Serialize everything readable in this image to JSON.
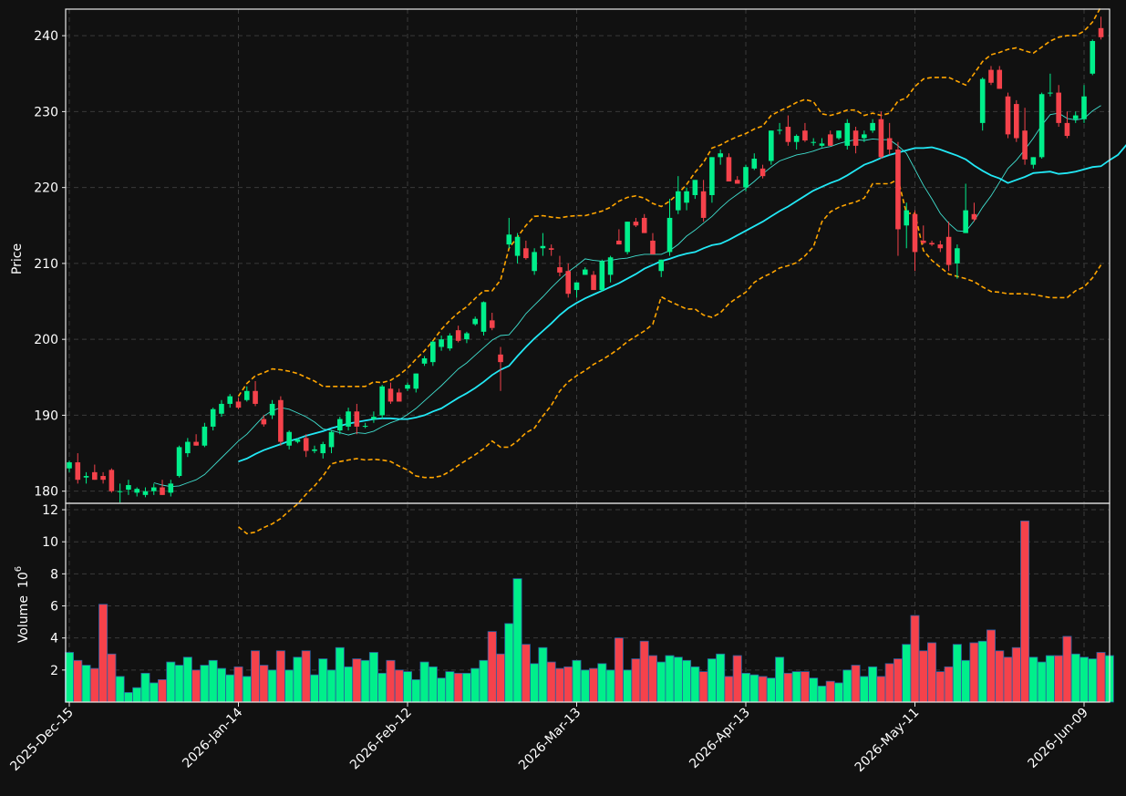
{
  "chart_data": {
    "type": "candlestick",
    "style": {
      "background": "#111111",
      "up_color": "#00ef8b",
      "down_color": "#f5424b",
      "grid_color": "#3a3a3a",
      "ma_short_color": "#40e0d0",
      "ma_long_color": "#22e8f5",
      "band_color": "#ffa500"
    },
    "price_panel": {
      "ylabel": "Price",
      "ylim": [
        178.4,
        243.5
      ],
      "yticks": [
        180,
        190,
        200,
        210,
        220,
        230,
        240
      ]
    },
    "volume_panel": {
      "ylabel": "Volume",
      "ylabel_unit": "10",
      "ylabel_exp": "6",
      "ylim": [
        0,
        12.4
      ],
      "yticks": [
        2,
        4,
        6,
        8,
        10,
        12
      ]
    },
    "x_axis": {
      "ticks": [
        {
          "index": 0,
          "label": "2025-Dec-15"
        },
        {
          "index": 20,
          "label": "2026-Jan-14"
        },
        {
          "index": 40,
          "label": "2026-Feb-12"
        },
        {
          "index": 60,
          "label": "2026-Mar-13"
        },
        {
          "index": 80,
          "label": "2026-Apr-13"
        },
        {
          "index": 100,
          "label": "2026-May-11"
        },
        {
          "index": 120,
          "label": "2026-Jun-09"
        }
      ]
    },
    "candles": [
      [
        183.0,
        184.0,
        182.5,
        183.8
      ],
      [
        183.8,
        185.0,
        181.0,
        181.5
      ],
      [
        181.8,
        182.5,
        181.0,
        182.0
      ],
      [
        182.5,
        183.5,
        181.5,
        181.5
      ],
      [
        182.0,
        182.5,
        181.0,
        181.5
      ],
      [
        182.8,
        183.0,
        179.8,
        180.0
      ],
      [
        180.0,
        181.0,
        178.5,
        180.0
      ],
      [
        180.2,
        181.5,
        179.5,
        180.8
      ],
      [
        179.8,
        180.5,
        179.3,
        180.3
      ],
      [
        179.5,
        180.5,
        179.2,
        180.0
      ],
      [
        180.0,
        181.0,
        179.5,
        180.5
      ],
      [
        180.5,
        181.5,
        179.5,
        179.5
      ],
      [
        179.8,
        181.5,
        179.3,
        181.0
      ],
      [
        182.0,
        186.0,
        181.8,
        185.8
      ],
      [
        185.0,
        187.0,
        184.5,
        186.5
      ],
      [
        186.5,
        187.5,
        186.0,
        186.0
      ],
      [
        186.0,
        189.0,
        185.8,
        188.5
      ],
      [
        188.5,
        191.0,
        188.0,
        190.8
      ],
      [
        190.2,
        192.0,
        189.8,
        191.5
      ],
      [
        191.5,
        192.8,
        191.0,
        192.5
      ],
      [
        191.8,
        192.3,
        190.8,
        191.0
      ],
      [
        192.0,
        193.8,
        191.8,
        193.2
      ],
      [
        193.2,
        194.5,
        191.2,
        191.5
      ],
      [
        189.5,
        190.0,
        188.5,
        188.8
      ],
      [
        190.0,
        192.0,
        189.5,
        191.5
      ],
      [
        192.0,
        192.5,
        186.0,
        186.5
      ],
      [
        186.0,
        188.0,
        185.5,
        187.8
      ],
      [
        186.5,
        187.0,
        186.3,
        186.8
      ],
      [
        187.0,
        187.5,
        184.5,
        185.3
      ],
      [
        185.3,
        186.0,
        185.0,
        185.5
      ],
      [
        185.0,
        186.5,
        184.3,
        186.2
      ],
      [
        185.8,
        188.0,
        185.0,
        187.8
      ],
      [
        188.0,
        189.8,
        187.5,
        189.5
      ],
      [
        188.5,
        191.0,
        188.0,
        190.5
      ],
      [
        190.5,
        191.5,
        187.5,
        188.5
      ],
      [
        188.5,
        189.0,
        188.3,
        188.6
      ],
      [
        189.5,
        190.5,
        189.0,
        189.8
      ],
      [
        190.0,
        194.0,
        189.5,
        193.8
      ],
      [
        193.5,
        194.3,
        191.5,
        191.8
      ],
      [
        193.0,
        193.5,
        191.8,
        191.8
      ],
      [
        193.5,
        194.3,
        193.2,
        194.0
      ],
      [
        193.5,
        195.5,
        193.0,
        195.5
      ],
      [
        196.8,
        197.8,
        196.5,
        197.5
      ],
      [
        197.0,
        199.8,
        196.5,
        199.7
      ],
      [
        199.0,
        200.5,
        198.5,
        200.0
      ],
      [
        198.8,
        200.8,
        198.5,
        200.5
      ],
      [
        201.2,
        201.8,
        199.6,
        199.8
      ],
      [
        200.0,
        201.0,
        199.5,
        200.8
      ],
      [
        202.0,
        203.0,
        201.8,
        202.7
      ],
      [
        201.0,
        205.0,
        200.5,
        204.9
      ],
      [
        202.5,
        203.5,
        201.2,
        201.5
      ],
      [
        198.0,
        199.0,
        193.2,
        197.0
      ],
      [
        212.5,
        216.0,
        212.0,
        213.8
      ],
      [
        211.0,
        214.0,
        210.0,
        213.5
      ],
      [
        212.0,
        213.0,
        210.5,
        210.7
      ],
      [
        209.0,
        212.0,
        208.5,
        211.5
      ],
      [
        212.0,
        214.0,
        211.0,
        212.3
      ],
      [
        212.0,
        212.5,
        211.0,
        211.8
      ],
      [
        209.5,
        211.0,
        208.3,
        208.8
      ],
      [
        209.0,
        210.0,
        205.5,
        206.0
      ],
      [
        206.5,
        207.5,
        205.5,
        207.5
      ],
      [
        208.5,
        209.5,
        208.5,
        209.2
      ],
      [
        208.5,
        209.0,
        206.5,
        206.5
      ],
      [
        206.5,
        210.5,
        206.3,
        210.3
      ],
      [
        208.5,
        211.0,
        207.5,
        210.8
      ],
      [
        213.0,
        214.5,
        212.5,
        212.5
      ],
      [
        211.5,
        215.5,
        211.2,
        215.5
      ],
      [
        215.5,
        216.0,
        214.8,
        215.0
      ],
      [
        216.0,
        216.5,
        214.0,
        214.0
      ],
      [
        213.0,
        214.0,
        211.2,
        211.2
      ],
      [
        209.0,
        210.5,
        208.2,
        210.5
      ],
      [
        211.5,
        218.5,
        211.0,
        216.0
      ],
      [
        217.0,
        221.5,
        216.5,
        219.5
      ],
      [
        218.0,
        220.0,
        217.0,
        219.5
      ],
      [
        219.0,
        221.0,
        218.5,
        221.0
      ],
      [
        219.5,
        221.0,
        215.5,
        216.0
      ],
      [
        219.0,
        224.0,
        218.0,
        224.0
      ],
      [
        224.0,
        225.0,
        223.0,
        224.5
      ],
      [
        224.0,
        224.5,
        221.0,
        220.8
      ],
      [
        221.0,
        221.5,
        220.5,
        220.5
      ],
      [
        220.0,
        223.0,
        219.5,
        222.7
      ],
      [
        222.5,
        224.5,
        222.3,
        223.8
      ],
      [
        222.5,
        223.0,
        221.2,
        221.5
      ],
      [
        223.5,
        227.5,
        223.0,
        227.5
      ],
      [
        227.5,
        228.5,
        227.0,
        227.6
      ],
      [
        228.0,
        229.5,
        225.5,
        226.0
      ],
      [
        226.0,
        227.0,
        225.0,
        226.8
      ],
      [
        227.5,
        228.5,
        226.0,
        226.2
      ],
      [
        226.0,
        226.5,
        225.5,
        226.0
      ],
      [
        225.5,
        226.5,
        225.3,
        225.8
      ],
      [
        227.0,
        227.5,
        225.5,
        225.5
      ],
      [
        226.5,
        227.5,
        226.3,
        227.5
      ],
      [
        225.5,
        229.0,
        225.0,
        228.5
      ],
      [
        227.5,
        228.0,
        224.5,
        225.5
      ],
      [
        226.5,
        227.5,
        226.0,
        227.0
      ],
      [
        227.5,
        229.0,
        227.2,
        228.5
      ],
      [
        229.0,
        230.0,
        223.8,
        224.0
      ],
      [
        226.5,
        228.5,
        224.3,
        225.0
      ],
      [
        225.0,
        226.0,
        211.0,
        214.5
      ],
      [
        215.0,
        218.0,
        212.0,
        217.0
      ],
      [
        216.5,
        217.0,
        209.0,
        211.5
      ],
      [
        213.0,
        215.0,
        212.5,
        212.7
      ],
      [
        212.7,
        213.0,
        212.3,
        212.5
      ],
      [
        212.5,
        213.0,
        211.5,
        212.0
      ],
      [
        213.5,
        215.5,
        209.0,
        209.8
      ],
      [
        210.0,
        212.5,
        208.0,
        212.0
      ],
      [
        214.0,
        220.5,
        214.0,
        217.0
      ],
      [
        216.5,
        218.0,
        215.5,
        215.8
      ],
      [
        228.5,
        234.5,
        227.5,
        234.3
      ],
      [
        235.5,
        236.0,
        233.5,
        233.8
      ],
      [
        235.5,
        236.0,
        233.0,
        233.0
      ],
      [
        232.0,
        232.5,
        226.5,
        227.0
      ],
      [
        231.0,
        231.5,
        226.0,
        226.5
      ],
      [
        227.5,
        230.5,
        223.0,
        223.7
      ],
      [
        223.0,
        224.0,
        222.5,
        224.0
      ],
      [
        224.0,
        232.5,
        223.8,
        232.3
      ],
      [
        232.5,
        235.0,
        232.0,
        232.5
      ],
      [
        232.5,
        233.5,
        228.0,
        228.5
      ],
      [
        228.5,
        230.0,
        226.5,
        226.8
      ],
      [
        229.0,
        230.0,
        228.5,
        229.5
      ],
      [
        229.0,
        233.5,
        228.5,
        232.0
      ],
      [
        235.0,
        239.5,
        234.8,
        239.3
      ],
      [
        241.0,
        242.5,
        239.5,
        239.8
      ]
    ],
    "ma_short": [
      null,
      null,
      null,
      null,
      null,
      null,
      null,
      null,
      null,
      null,
      181.1,
      180.8,
      180.6,
      180.7,
      181.1,
      181.5,
      182.2,
      183.3,
      184.4,
      185.5,
      186.6,
      187.5,
      188.7,
      189.9,
      190.6,
      191.0,
      190.8,
      190.3,
      189.8,
      189.1,
      188.2,
      188.0,
      187.7,
      187.4,
      187.7,
      187.6,
      187.9,
      188.5,
      189.0,
      189.4,
      190.1,
      190.9,
      191.9,
      192.9,
      193.9,
      195.0,
      196.1,
      196.9,
      197.9,
      198.9,
      199.9,
      200.5,
      200.6,
      201.9,
      203.4,
      204.5,
      205.6,
      206.8,
      207.9,
      208.9,
      209.7,
      210.6,
      210.4,
      210.3,
      210.4,
      210.6,
      210.7,
      211.0,
      211.2,
      211.2,
      211.2,
      211.7,
      212.5,
      213.6,
      214.4,
      215.3,
      216.2,
      217.3,
      218.3,
      219.1,
      219.9,
      220.8,
      221.8,
      222.7,
      223.5,
      223.9,
      224.3,
      224.5,
      224.8,
      225.2,
      225.4,
      225.8,
      226.1,
      226.3,
      226.2,
      226.4,
      226.3,
      226.3,
      225.5,
      224.5,
      222.4,
      220.3,
      218.5,
      216.6,
      215.3,
      214.3,
      214.2,
      215.6,
      217.4,
      218.9,
      220.7,
      222.5,
      223.6,
      225.0,
      226.5,
      228.2,
      229.6,
      229.8,
      229.1,
      228.9,
      229.1,
      230.1,
      230.8
    ],
    "ma_long": [
      null,
      null,
      null,
      null,
      null,
      null,
      null,
      null,
      null,
      null,
      null,
      null,
      null,
      null,
      null,
      null,
      null,
      null,
      null,
      null,
      183.9,
      184.3,
      184.9,
      185.4,
      185.8,
      186.2,
      186.6,
      186.9,
      187.3,
      187.6,
      187.9,
      188.3,
      188.6,
      188.9,
      189.1,
      189.3,
      189.5,
      189.6,
      189.6,
      189.5,
      189.5,
      189.7,
      190.0,
      190.5,
      190.9,
      191.6,
      192.3,
      192.9,
      193.6,
      194.4,
      195.3,
      196.0,
      196.5,
      197.8,
      199.0,
      200.1,
      201.1,
      202.1,
      203.2,
      204.1,
      204.8,
      205.4,
      205.9,
      206.4,
      206.9,
      207.4,
      208.0,
      208.6,
      209.3,
      209.8,
      210.3,
      210.6,
      211.0,
      211.3,
      211.5,
      212.0,
      212.4,
      212.6,
      213.1,
      213.7,
      214.3,
      214.9,
      215.5,
      216.2,
      216.9,
      217.5,
      218.2,
      218.9,
      219.6,
      220.1,
      220.6,
      221.0,
      221.6,
      222.3,
      223.0,
      223.4,
      223.9,
      224.3,
      224.6,
      224.9,
      225.2,
      225.2,
      225.3,
      225.0,
      224.6,
      224.2,
      223.7,
      222.9,
      222.2,
      221.6,
      221.2,
      220.6,
      221.0,
      221.4,
      221.9,
      222.0,
      222.1,
      221.8,
      221.9,
      222.1,
      222.4,
      222.7,
      222.8,
      223.6,
      224.3,
      225.6,
      226.8
    ],
    "band_upper": [
      null,
      null,
      null,
      null,
      null,
      null,
      null,
      null,
      null,
      null,
      null,
      null,
      null,
      null,
      null,
      null,
      null,
      null,
      null,
      null,
      192.5,
      194.2,
      195.2,
      195.6,
      196.1,
      196.0,
      195.8,
      195.5,
      195.0,
      194.5,
      193.8,
      193.8,
      193.8,
      193.8,
      193.8,
      193.8,
      194.4,
      194.3,
      194.6,
      195.3,
      196.2,
      197.4,
      198.5,
      199.8,
      201.3,
      202.5,
      203.5,
      204.3,
      205.4,
      206.4,
      206.4,
      207.8,
      212.0,
      213.5,
      215.0,
      216.2,
      216.3,
      216.1,
      216.0,
      216.2,
      216.3,
      216.3,
      216.6,
      216.9,
      217.4,
      218.2,
      218.7,
      218.9,
      218.6,
      217.9,
      217.5,
      218.2,
      219.2,
      220.4,
      222.0,
      223.3,
      225.2,
      225.6,
      226.2,
      226.7,
      227.1,
      227.7,
      228.1,
      229.5,
      230.1,
      230.6,
      231.2,
      231.6,
      231.3,
      229.7,
      229.5,
      229.8,
      230.2,
      230.2,
      229.5,
      229.8,
      229.5,
      229.8,
      231.4,
      231.8,
      233.3,
      234.3,
      234.5,
      234.5,
      234.5,
      234.0,
      233.5,
      235.0,
      236.6,
      237.5,
      237.8,
      238.2,
      238.4,
      238.0,
      237.7,
      238.5,
      239.3,
      239.8,
      240.0,
      240.0,
      240.6,
      241.8,
      243.8
    ],
    "band_lower": [
      null,
      null,
      null,
      null,
      null,
      null,
      null,
      null,
      null,
      null,
      null,
      null,
      null,
      null,
      null,
      null,
      null,
      null,
      null,
      null,
      175.3,
      174.4,
      174.6,
      175.2,
      175.7,
      176.4,
      177.4,
      178.3,
      179.6,
      180.7,
      182.0,
      183.6,
      183.9,
      184.1,
      184.3,
      184.1,
      184.2,
      184.1,
      183.9,
      183.3,
      182.8,
      182.0,
      181.8,
      181.8,
      182.0,
      182.6,
      183.4,
      184.1,
      184.8,
      185.6,
      186.6,
      185.8,
      185.8,
      186.6,
      187.7,
      188.3,
      189.9,
      191.3,
      193.2,
      194.4,
      195.2,
      195.9,
      196.7,
      197.3,
      198.0,
      198.8,
      199.7,
      200.4,
      201.1,
      202.0,
      205.6,
      205.0,
      204.5,
      204.0,
      204.0,
      203.2,
      202.9,
      203.5,
      204.7,
      205.5,
      206.2,
      207.5,
      208.2,
      208.7,
      209.4,
      209.7,
      210.1,
      211.0,
      212.2,
      215.5,
      216.8,
      217.4,
      217.8,
      218.1,
      218.6,
      220.5,
      220.5,
      220.5,
      221.1,
      216.6,
      216.6,
      211.7,
      210.4,
      209.5,
      208.6,
      208.3,
      208.0,
      207.6,
      206.9,
      206.3,
      206.2,
      206.0,
      206.0,
      206.0,
      205.9,
      205.7,
      205.5,
      205.5,
      205.5,
      206.4,
      206.9,
      208.1,
      209.8
    ],
    "volume": [
      3.1,
      2.6,
      2.3,
      2.1,
      6.1,
      3.0,
      1.6,
      0.6,
      0.9,
      1.8,
      1.2,
      1.4,
      2.5,
      2.3,
      2.8,
      2.0,
      2.3,
      2.6,
      2.1,
      1.7,
      2.2,
      1.6,
      3.2,
      2.3,
      2.0,
      3.2,
      2.0,
      2.8,
      3.2,
      1.7,
      2.7,
      2.0,
      3.4,
      2.2,
      2.7,
      2.6,
      3.1,
      1.8,
      2.6,
      2.0,
      1.9,
      1.4,
      2.5,
      2.2,
      1.5,
      1.9,
      1.8,
      1.8,
      2.1,
      2.6,
      4.4,
      3.0,
      4.9,
      7.7,
      3.6,
      2.4,
      3.4,
      2.5,
      2.1,
      2.2,
      2.6,
      2.0,
      2.1,
      2.4,
      2.0,
      4.0,
      2.0,
      2.7,
      3.8,
      2.9,
      2.5,
      2.9,
      2.8,
      2.6,
      2.2,
      1.9,
      2.7,
      3.0,
      1.6,
      2.9,
      1.8,
      1.7,
      1.6,
      1.5,
      2.8,
      1.8,
      1.9,
      1.9,
      1.5,
      1.0,
      1.3,
      1.2,
      2.0,
      2.3,
      1.6,
      2.2,
      1.6,
      2.4,
      2.7,
      3.6,
      5.4,
      3.2,
      3.7,
      1.9,
      2.2,
      3.6,
      2.6,
      3.7,
      3.8,
      4.5,
      3.2,
      2.8,
      3.4,
      11.3,
      2.8,
      2.5,
      2.9,
      2.9,
      4.1,
      3.0,
      2.8,
      2.7,
      3.1,
      2.9
    ]
  }
}
